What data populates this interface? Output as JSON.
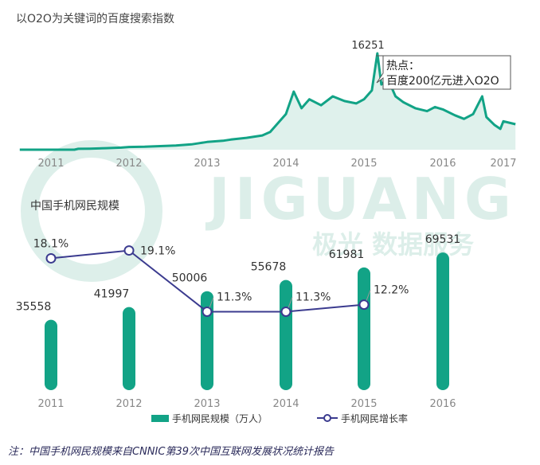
{
  "watermark": {
    "logo_text": "JIGUANG",
    "tagline": "极光 数据服务",
    "color": "#2a9d7a"
  },
  "colors": {
    "teal": "#12a386",
    "teal_fill": "#dff1ec",
    "navy": "#3b3b8f",
    "axis_text": "#888888",
    "label_text": "#333333",
    "footnote": "#2a2a5a"
  },
  "chart_data": [
    {
      "type": "area",
      "title": "以O2O为关键词的百度搜索指数",
      "x_ticks": [
        "2011",
        "2012",
        "2013",
        "2014",
        "2015",
        "2016",
        "2017"
      ],
      "xlim": [
        "2011-01",
        "2017-02"
      ],
      "ylim": [
        0,
        16251
      ],
      "peak": {
        "x": "2015-03",
        "value": 16251,
        "label": "16251"
      },
      "callout": {
        "line1": "热点：",
        "line2": "百度200亿元进入O2O"
      },
      "grid": false,
      "series": [
        {
          "values": [
            [
              2010.6,
              0
            ],
            [
              2011.0,
              0
            ],
            [
              2011.3,
              0
            ],
            [
              2011.35,
              150
            ],
            [
              2011.5,
              180
            ],
            [
              2011.7,
              250
            ],
            [
              2011.9,
              350
            ],
            [
              2012.0,
              450
            ],
            [
              2012.2,
              500
            ],
            [
              2012.4,
              600
            ],
            [
              2012.6,
              700
            ],
            [
              2012.8,
              900
            ],
            [
              2012.9,
              1100
            ],
            [
              2013.0,
              1300
            ],
            [
              2013.2,
              1500
            ],
            [
              2013.3,
              1700
            ],
            [
              2013.5,
              2000
            ],
            [
              2013.7,
              2400
            ],
            [
              2013.8,
              3000
            ],
            [
              2013.9,
              4500
            ],
            [
              2014.0,
              6000
            ],
            [
              2014.1,
              9800
            ],
            [
              2014.2,
              7000
            ],
            [
              2014.3,
              8500
            ],
            [
              2014.45,
              7500
            ],
            [
              2014.6,
              9000
            ],
            [
              2014.75,
              8200
            ],
            [
              2014.9,
              7800
            ],
            [
              2015.0,
              8500
            ],
            [
              2015.1,
              10000
            ],
            [
              2015.17,
              16251
            ],
            [
              2015.22,
              11000
            ],
            [
              2015.3,
              12000
            ],
            [
              2015.4,
              9000
            ],
            [
              2015.5,
              8000
            ],
            [
              2015.65,
              7000
            ],
            [
              2015.8,
              6500
            ],
            [
              2015.9,
              7200
            ],
            [
              2016.0,
              6800
            ],
            [
              2016.2,
              5800
            ],
            [
              2016.35,
              5200
            ],
            [
              2016.5,
              6000
            ],
            [
              2016.65,
              9000
            ],
            [
              2016.72,
              5500
            ],
            [
              2016.85,
              4200
            ],
            [
              2016.95,
              3500
            ],
            [
              2017.0,
              4800
            ],
            [
              2017.2,
              4300
            ]
          ]
        }
      ]
    },
    {
      "type": "bar",
      "title": "中国手机网民规模",
      "categories": [
        "2011",
        "2012",
        "2013",
        "2014",
        "2015",
        "2016"
      ],
      "ylim": [
        0,
        70000
      ],
      "grid": false,
      "legend_position": "bottom",
      "series": [
        {
          "name": "手机网民规模（万人）",
          "type": "bar",
          "values": [
            35558,
            41997,
            50006,
            55678,
            61981,
            69531
          ],
          "labels": [
            "35558",
            "41997",
            "50006",
            "55678",
            "61981",
            "69531"
          ]
        },
        {
          "name": "手机网民增长率",
          "type": "line",
          "values": [
            18.1,
            19.1,
            11.3,
            11.3,
            12.2,
            null
          ],
          "labels": [
            "18.1%",
            "19.1%",
            "11.3%",
            "11.3%",
            "12.2%",
            null
          ]
        }
      ]
    }
  ],
  "footnote": "注：中国手机网民规模来自CNNIC第39次中国互联网发展状况统计报告"
}
